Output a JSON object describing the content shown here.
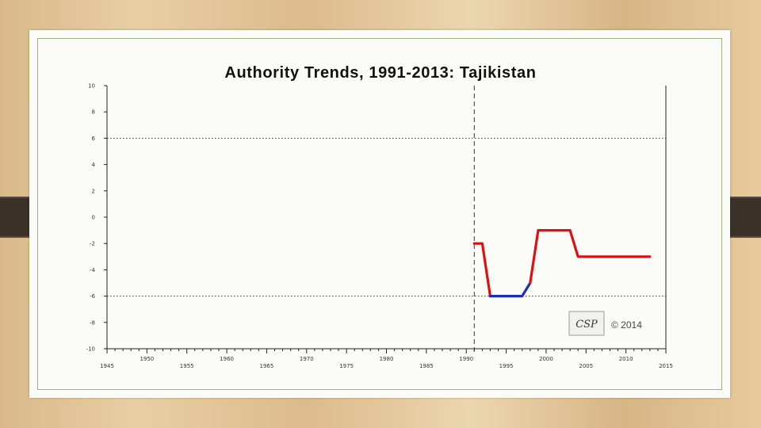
{
  "chart_data": {
    "type": "line",
    "title": "Authority Trends, 1991-2013: Tajikistan",
    "xlim": [
      1945,
      2015
    ],
    "ylim": [
      -10,
      10
    ],
    "x_ticks_major": [
      1945,
      1950,
      1955,
      1960,
      1965,
      1970,
      1975,
      1980,
      1985,
      1990,
      1995,
      2000,
      2005,
      2010,
      2015
    ],
    "x_tick_labels": [
      "1945",
      "1950",
      "1955",
      "1960",
      "1965",
      "1970",
      "1975",
      "1980",
      "1985",
      "1990",
      "1995",
      "2000",
      "2005",
      "2010",
      "2015"
    ],
    "y_ticks": [
      10,
      8,
      6,
      4,
      2,
      0,
      -2,
      -4,
      -6,
      -8,
      -10
    ],
    "y_tick_labels": [
      "10",
      "8",
      "6",
      "4",
      "2",
      "0",
      "-2",
      "-4",
      "-6",
      "-8",
      "-10"
    ],
    "reference_lines": {
      "horizontal_dotted": [
        6,
        -6
      ],
      "vertical_dashed": [
        1991
      ]
    },
    "series": [
      {
        "color": "#dd1111",
        "x": [
          1991,
          1992,
          1993
        ],
        "y": [
          -2,
          -2,
          -6
        ]
      },
      {
        "color": "#1a2fbb",
        "x": [
          1993,
          1997,
          1998
        ],
        "y": [
          -6,
          -6,
          -5
        ]
      },
      {
        "color": "#dd1111",
        "x": [
          1998,
          1999,
          2003,
          2004,
          2013
        ],
        "y": [
          -5,
          -1,
          -1,
          -3,
          -3
        ]
      }
    ],
    "grid": false,
    "legend": "none"
  },
  "watermark": {
    "logo_text": "CSP",
    "copyright": "© 2014"
  }
}
